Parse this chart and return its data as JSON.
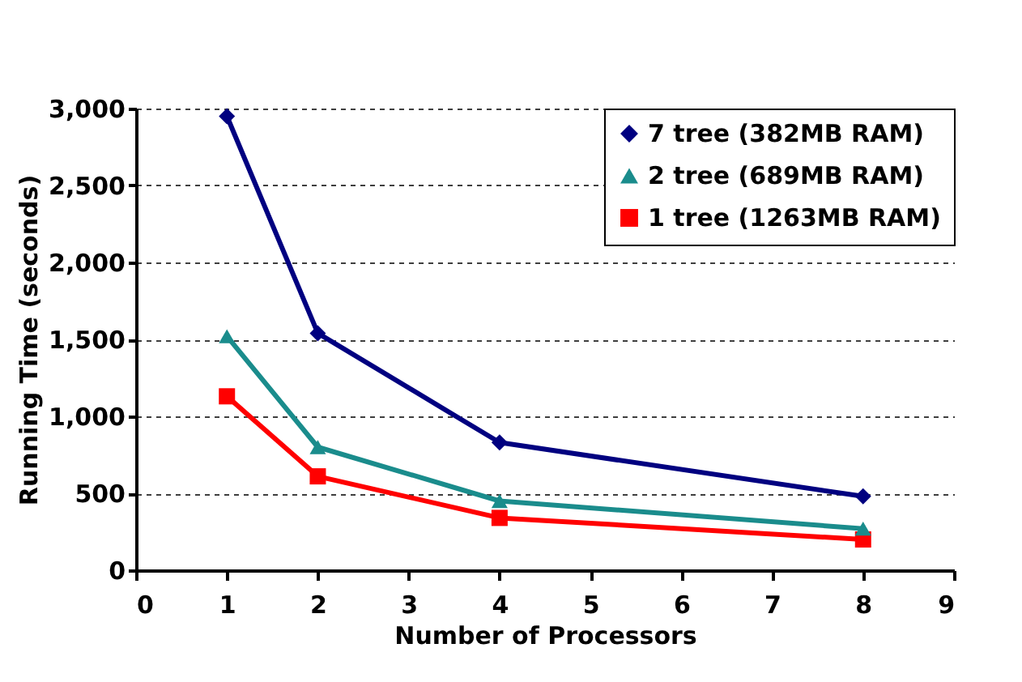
{
  "chart_data": {
    "type": "line",
    "xlabel": "Number of Processors",
    "ylabel": "Running Time (seconds)",
    "x": [
      1,
      2,
      4,
      8
    ],
    "series": [
      {
        "name": "7 tree (382MB RAM)",
        "color": "#000080",
        "marker": "diamond",
        "values": [
          2950,
          1540,
          830,
          480
        ]
      },
      {
        "name": "2 tree (689MB RAM)",
        "color": "#1a8c8c",
        "marker": "triangle",
        "values": [
          1520,
          800,
          450,
          270
        ]
      },
      {
        "name": "1 tree (1263MB RAM)",
        "color": "#ff0000",
        "marker": "square",
        "values": [
          1130,
          610,
          340,
          200
        ]
      }
    ],
    "xlim": [
      0,
      9
    ],
    "xticks": [
      0,
      1,
      2,
      3,
      4,
      5,
      6,
      7,
      8,
      9
    ],
    "ylim": [
      0,
      3000
    ],
    "yticks": [
      {
        "value": 0,
        "label": "0"
      },
      {
        "value": 500,
        "label": "500"
      },
      {
        "value": 1000,
        "label": "1,000"
      },
      {
        "value": 1500,
        "label": "1,500"
      },
      {
        "value": 2000,
        "label": "2,000"
      },
      {
        "value": 2500,
        "label": "2,500"
      },
      {
        "value": 3000,
        "label": "3,000"
      }
    ],
    "grid": "y",
    "legend": "top right",
    "line_style": "solid"
  }
}
